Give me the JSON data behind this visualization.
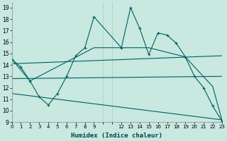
{
  "xlabel": "Humidex (Indice chaleur)",
  "xlim": [
    0,
    23
  ],
  "ylim": [
    9,
    19.5
  ],
  "yticks": [
    9,
    10,
    11,
    12,
    13,
    14,
    15,
    16,
    17,
    18,
    19
  ],
  "xtick_positions": [
    0,
    1,
    2,
    3,
    4,
    5,
    6,
    7,
    8,
    9,
    12,
    13,
    14,
    15,
    16,
    17,
    18,
    19,
    20,
    21,
    22,
    23
  ],
  "xtick_labels": [
    "0",
    "1",
    "2",
    "3",
    "4",
    "5",
    "6",
    "7",
    "8",
    "9",
    "12",
    "13",
    "14",
    "15",
    "16",
    "17",
    "18",
    "19",
    "20",
    "21",
    "22",
    "23"
  ],
  "bg_color": "#c8e8e0",
  "line_color": "#006060",
  "series1_x": [
    0,
    1,
    2,
    3,
    4,
    5,
    6,
    7,
    8,
    9,
    12,
    13,
    14,
    15,
    16,
    17,
    18,
    19,
    20,
    21,
    22,
    23
  ],
  "series1_y": [
    14.5,
    13.8,
    12.6,
    11.2,
    10.5,
    11.5,
    13.0,
    14.8,
    15.5,
    18.2,
    15.5,
    19.0,
    17.2,
    14.9,
    16.8,
    16.6,
    15.9,
    14.7,
    13.0,
    12.0,
    10.4,
    9.1
  ],
  "series2_x": [
    0,
    2,
    9,
    15,
    19,
    22,
    23
  ],
  "series2_y": [
    14.5,
    12.6,
    15.5,
    15.5,
    14.7,
    12.1,
    9.2
  ],
  "series3_x": [
    0,
    23
  ],
  "series3_y": [
    14.1,
    14.8
  ],
  "series4_x": [
    0,
    23
  ],
  "series4_y": [
    12.8,
    13.0
  ],
  "series5_x": [
    0,
    23
  ],
  "series5_y": [
    11.5,
    9.2
  ]
}
